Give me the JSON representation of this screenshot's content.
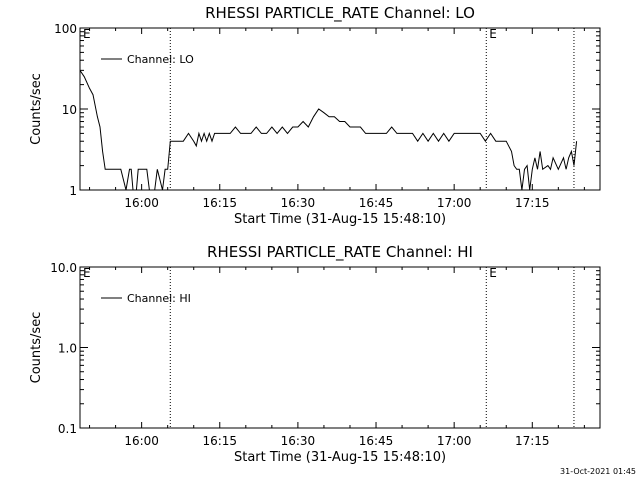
{
  "footer": {
    "timestamp": "31-Oct-2021 01:45"
  },
  "chart_data": [
    {
      "type": "line",
      "title": "RHESSI PARTICLE_RATE Channel: LO",
      "xlabel": "Start Time (31-Aug-15 15:48:10)",
      "ylabel": "Counts/sec",
      "yscale": "log",
      "ylim": [
        1,
        100
      ],
      "xlim": [
        "15:48:10",
        "17:28:00"
      ],
      "x_tick_labels": [
        "16:00",
        "16:15",
        "16:30",
        "16:45",
        "17:00",
        "17:15"
      ],
      "y_tick_labels": [
        "1",
        "10",
        "100"
      ],
      "legend": {
        "label": "Channel: LO",
        "position": "top-left"
      },
      "markers": [
        {
          "time": "15:48:10",
          "label": "E"
        },
        {
          "time": "16:05:30",
          "label": ""
        },
        {
          "time": "17:06:10",
          "label": "E"
        },
        {
          "time": "17:23:00",
          "label": ""
        }
      ],
      "series": [
        {
          "name": "Channel: LO",
          "x": [
            "15:48:10",
            "15:49:00",
            "15:50:00",
            "15:50:40",
            "15:51:30",
            "15:52:00",
            "15:52:30",
            "15:53:00",
            "15:53:30",
            "15:54:00",
            "15:55:00",
            "15:55:20",
            "15:56:00",
            "15:57:00",
            "15:57:40",
            "15:58:00",
            "15:58:20",
            "15:59:00",
            "15:59:20",
            "16:00:00",
            "16:00:30",
            "16:01:00",
            "16:01:30",
            "16:02:00",
            "16:02:30",
            "16:03:00",
            "16:04:00",
            "16:04:30",
            "16:05:00",
            "16:05:30",
            "16:06:00",
            "16:07:00",
            "16:08:00",
            "16:09:00",
            "16:10:00",
            "16:10:30",
            "16:11:00",
            "16:11:30",
            "16:12:00",
            "16:12:30",
            "16:13:00",
            "16:13:30",
            "16:14:00",
            "16:15:00",
            "16:16:00",
            "16:17:00",
            "16:18:00",
            "16:19:00",
            "16:20:00",
            "16:21:00",
            "16:22:00",
            "16:23:00",
            "16:24:00",
            "16:25:00",
            "16:26:00",
            "16:27:00",
            "16:28:00",
            "16:29:00",
            "16:30:00",
            "16:31:00",
            "16:32:00",
            "16:33:00",
            "16:34:00",
            "16:35:00",
            "16:36:00",
            "16:37:00",
            "16:38:00",
            "16:39:00",
            "16:40:00",
            "16:41:00",
            "16:42:00",
            "16:43:00",
            "16:44:00",
            "16:45:00",
            "16:46:00",
            "16:47:00",
            "16:48:00",
            "16:49:00",
            "16:50:00",
            "16:51:00",
            "16:52:00",
            "16:53:00",
            "16:54:00",
            "16:55:00",
            "16:56:00",
            "16:57:00",
            "16:58:00",
            "16:59:00",
            "17:00:00",
            "17:01:00",
            "17:02:00",
            "17:03:00",
            "17:04:00",
            "17:05:00",
            "17:06:00",
            "17:07:00",
            "17:08:00",
            "17:09:00",
            "17:10:00",
            "17:11:00",
            "17:11:30",
            "17:12:00",
            "17:12:30",
            "17:13:00",
            "17:13:30",
            "17:14:00",
            "17:14:30",
            "17:15:00",
            "17:15:30",
            "17:16:00",
            "17:16:30",
            "17:17:00",
            "17:18:00",
            "17:18:30",
            "17:19:00",
            "17:20:00",
            "17:21:00",
            "17:21:30",
            "17:22:00",
            "17:22:30",
            "17:23:00",
            "17:23:30"
          ],
          "y": [
            30,
            25,
            18,
            15,
            8,
            6,
            3,
            1.8,
            1.8,
            1.8,
            1.8,
            1.8,
            1.8,
            1.0,
            1.8,
            1.8,
            1.0,
            1.0,
            1.8,
            1.8,
            1.8,
            1.8,
            1.0,
            1.0,
            1.0,
            1.8,
            1.0,
            1.8,
            1.8,
            4,
            4,
            4,
            4,
            5,
            4,
            3.5,
            5,
            4,
            5,
            4,
            5,
            4,
            5,
            5,
            5,
            5,
            6,
            5,
            5,
            5,
            6,
            5,
            5,
            6,
            5,
            6,
            5,
            6,
            6,
            7,
            6,
            8,
            10,
            9,
            8,
            8,
            7,
            7,
            6,
            6,
            6,
            5,
            5,
            5,
            5,
            5,
            6,
            5,
            5,
            5,
            5,
            4,
            5,
            4,
            5,
            4,
            5,
            4,
            5,
            5,
            5,
            5,
            5,
            5,
            4,
            5,
            4,
            4,
            4,
            3,
            2,
            1.8,
            1.8,
            1.0,
            1.8,
            2,
            1.0,
            1.8,
            2.5,
            1.8,
            3,
            1.8,
            2,
            1.8,
            2.5,
            1.8,
            2.5,
            1.8,
            2.5,
            3,
            2,
            4
          ]
        }
      ]
    },
    {
      "type": "line",
      "title": "RHESSI PARTICLE_RATE Channel: HI",
      "xlabel": "Start Time (31-Aug-15 15:48:10)",
      "ylabel": "Counts/sec",
      "yscale": "log",
      "ylim": [
        0.1,
        10
      ],
      "xlim": [
        "15:48:10",
        "17:28:00"
      ],
      "x_tick_labels": [
        "16:00",
        "16:15",
        "16:30",
        "16:45",
        "17:00",
        "17:15"
      ],
      "y_tick_labels": [
        "0.1",
        "1.0",
        "10.0"
      ],
      "legend": {
        "label": "Channel: HI",
        "position": "top-left"
      },
      "markers": [
        {
          "time": "15:48:10",
          "label": "E"
        },
        {
          "time": "16:05:30",
          "label": ""
        },
        {
          "time": "17:06:10",
          "label": "E"
        },
        {
          "time": "17:23:00",
          "label": ""
        }
      ],
      "series": [
        {
          "name": "Channel: HI",
          "x": [],
          "y": []
        }
      ]
    }
  ]
}
